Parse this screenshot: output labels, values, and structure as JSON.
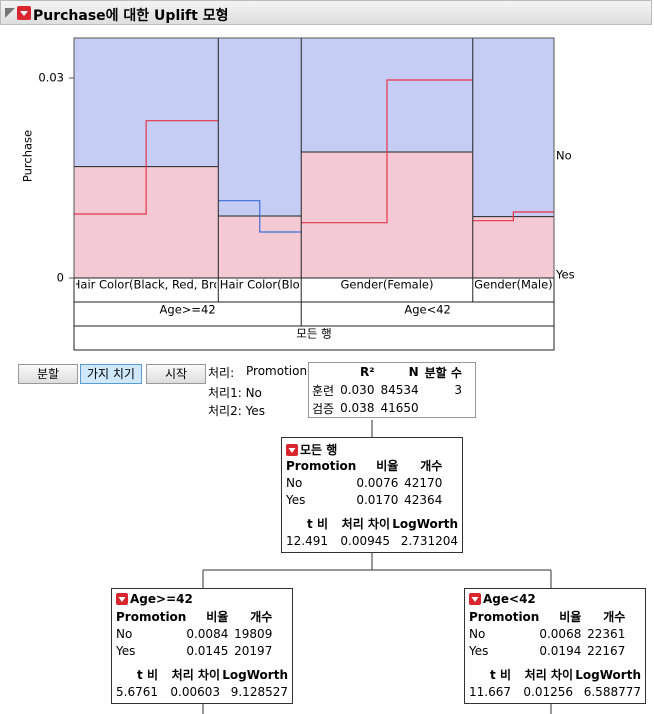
{
  "header": {
    "title": "Purchase에 대한 Uplift 모형"
  },
  "plot": {
    "y_label": "Purchase",
    "ylim": [
      0,
      0.036
    ],
    "yticks": [
      0,
      0.03
    ],
    "response_labels": [
      "No",
      "Yes"
    ],
    "root_label": "모든 행",
    "groups": [
      {
        "label": "Age>=42",
        "segments": [
          {
            "label": "Hair Color(Black, Red, Bro",
            "n": 25400,
            "rate_all": 0.0167,
            "rate_no": 0.0096,
            "rate_yes": 0.0236
          },
          {
            "label": "Hair Color(Blo",
            "n": 14600,
            "rate_all": 0.0093,
            "rate_no": 0.0116,
            "rate_yes": 0.0069
          }
        ]
      },
      {
        "label": "Age<42",
        "segments": [
          {
            "label": "Gender(Female)",
            "n": 30200,
            "rate_all": 0.0189,
            "rate_no": 0.0083,
            "rate_yes": 0.0297
          },
          {
            "label": "Gender(Male)",
            "n": 14300,
            "rate_all": 0.0092,
            "rate_no": 0.0086,
            "rate_yes": 0.0099
          }
        ]
      }
    ]
  },
  "controls": {
    "buttons": [
      "분할",
      "가지 치기",
      "시작"
    ],
    "treatment_label": "처리:",
    "treatment": "Promotion",
    "treatment1": "처리1: No",
    "treatment2": "처리2: Yes"
  },
  "stats": {
    "columns": [
      "R²",
      "N",
      "분할 수"
    ],
    "rows": [
      [
        "훈련",
        "0.030",
        "84534",
        "3"
      ],
      [
        "검증",
        "0.038",
        "41650"
      ]
    ]
  },
  "tree": {
    "nodes": [
      {
        "title": "모든 행",
        "columns": [
          "Promotion",
          "비율",
          "개수"
        ],
        "rows": [
          [
            "No",
            "0.0076",
            "42170"
          ],
          [
            "Yes",
            "0.0170",
            "42364"
          ]
        ],
        "stat_columns": [
          "t 비",
          "처리 차이",
          "LogWorth"
        ],
        "stats": [
          "12.491",
          "0.00945",
          "2.731204"
        ]
      },
      {
        "title": "Age>=42",
        "columns": [
          "Promotion",
          "비율",
          "개수"
        ],
        "rows": [
          [
            "No",
            "0.0084",
            "19809"
          ],
          [
            "Yes",
            "0.0145",
            "20197"
          ]
        ],
        "stat_columns": [
          "t 비",
          "처리 차이",
          "LogWorth"
        ],
        "stats": [
          "5.6761",
          "0.00603",
          "9.128527"
        ]
      },
      {
        "title": "Age<42",
        "columns": [
          "Promotion",
          "비율",
          "개수"
        ],
        "rows": [
          [
            "No",
            "0.0068",
            "22361"
          ],
          [
            "Yes",
            "0.0194",
            "22167"
          ]
        ],
        "stat_columns": [
          "t 비",
          "처리 차이",
          "LogWorth"
        ],
        "stats": [
          "11.667",
          "0.01256",
          "6.588777"
        ]
      }
    ]
  }
}
